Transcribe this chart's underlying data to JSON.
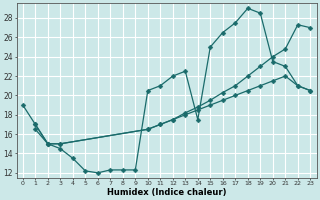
{
  "xlabel": "Humidex (Indice chaleur)",
  "bg_color": "#cce8e8",
  "grid_color": "#ffffff",
  "line_color": "#1a6b6b",
  "xlim": [
    -0.5,
    23.5
  ],
  "ylim": [
    11.5,
    29.5
  ],
  "xticks": [
    0,
    1,
    2,
    3,
    4,
    5,
    6,
    7,
    8,
    9,
    10,
    11,
    12,
    13,
    14,
    15,
    16,
    17,
    18,
    19,
    20,
    21,
    22,
    23
  ],
  "yticks": [
    12,
    14,
    16,
    18,
    20,
    22,
    24,
    26,
    28
  ],
  "curve1_x": [
    0,
    1,
    2,
    3,
    4,
    5,
    6,
    7,
    8,
    9,
    10,
    11,
    12,
    13,
    14,
    15,
    16,
    17,
    18,
    19,
    20,
    21,
    22,
    23
  ],
  "curve1_y": [
    19.0,
    17.0,
    15.0,
    14.5,
    13.5,
    12.2,
    12.0,
    12.3,
    12.3,
    12.3,
    20.5,
    21.0,
    22.0,
    22.5,
    17.5,
    25.0,
    26.5,
    27.5,
    29.0,
    28.5,
    23.5,
    23.0,
    21.0,
    20.5
  ],
  "curve2_x": [
    1,
    2,
    3,
    10,
    11,
    12,
    13,
    14,
    15,
    16,
    17,
    18,
    19,
    20,
    21,
    22,
    23
  ],
  "curve2_y": [
    17.0,
    15.0,
    15.0,
    16.5,
    17.0,
    17.5,
    18.2,
    18.8,
    19.5,
    20.3,
    21.0,
    22.0,
    23.0,
    24.0,
    24.8,
    27.3,
    27.0
  ],
  "curve3_x": [
    1,
    2,
    3,
    10,
    11,
    12,
    13,
    14,
    15,
    16,
    17,
    18,
    19,
    20,
    21,
    22,
    23
  ],
  "curve3_y": [
    16.5,
    15.0,
    15.0,
    16.5,
    17.0,
    17.5,
    18.0,
    18.5,
    19.0,
    19.5,
    20.0,
    20.5,
    21.0,
    21.5,
    22.0,
    21.0,
    20.5
  ]
}
